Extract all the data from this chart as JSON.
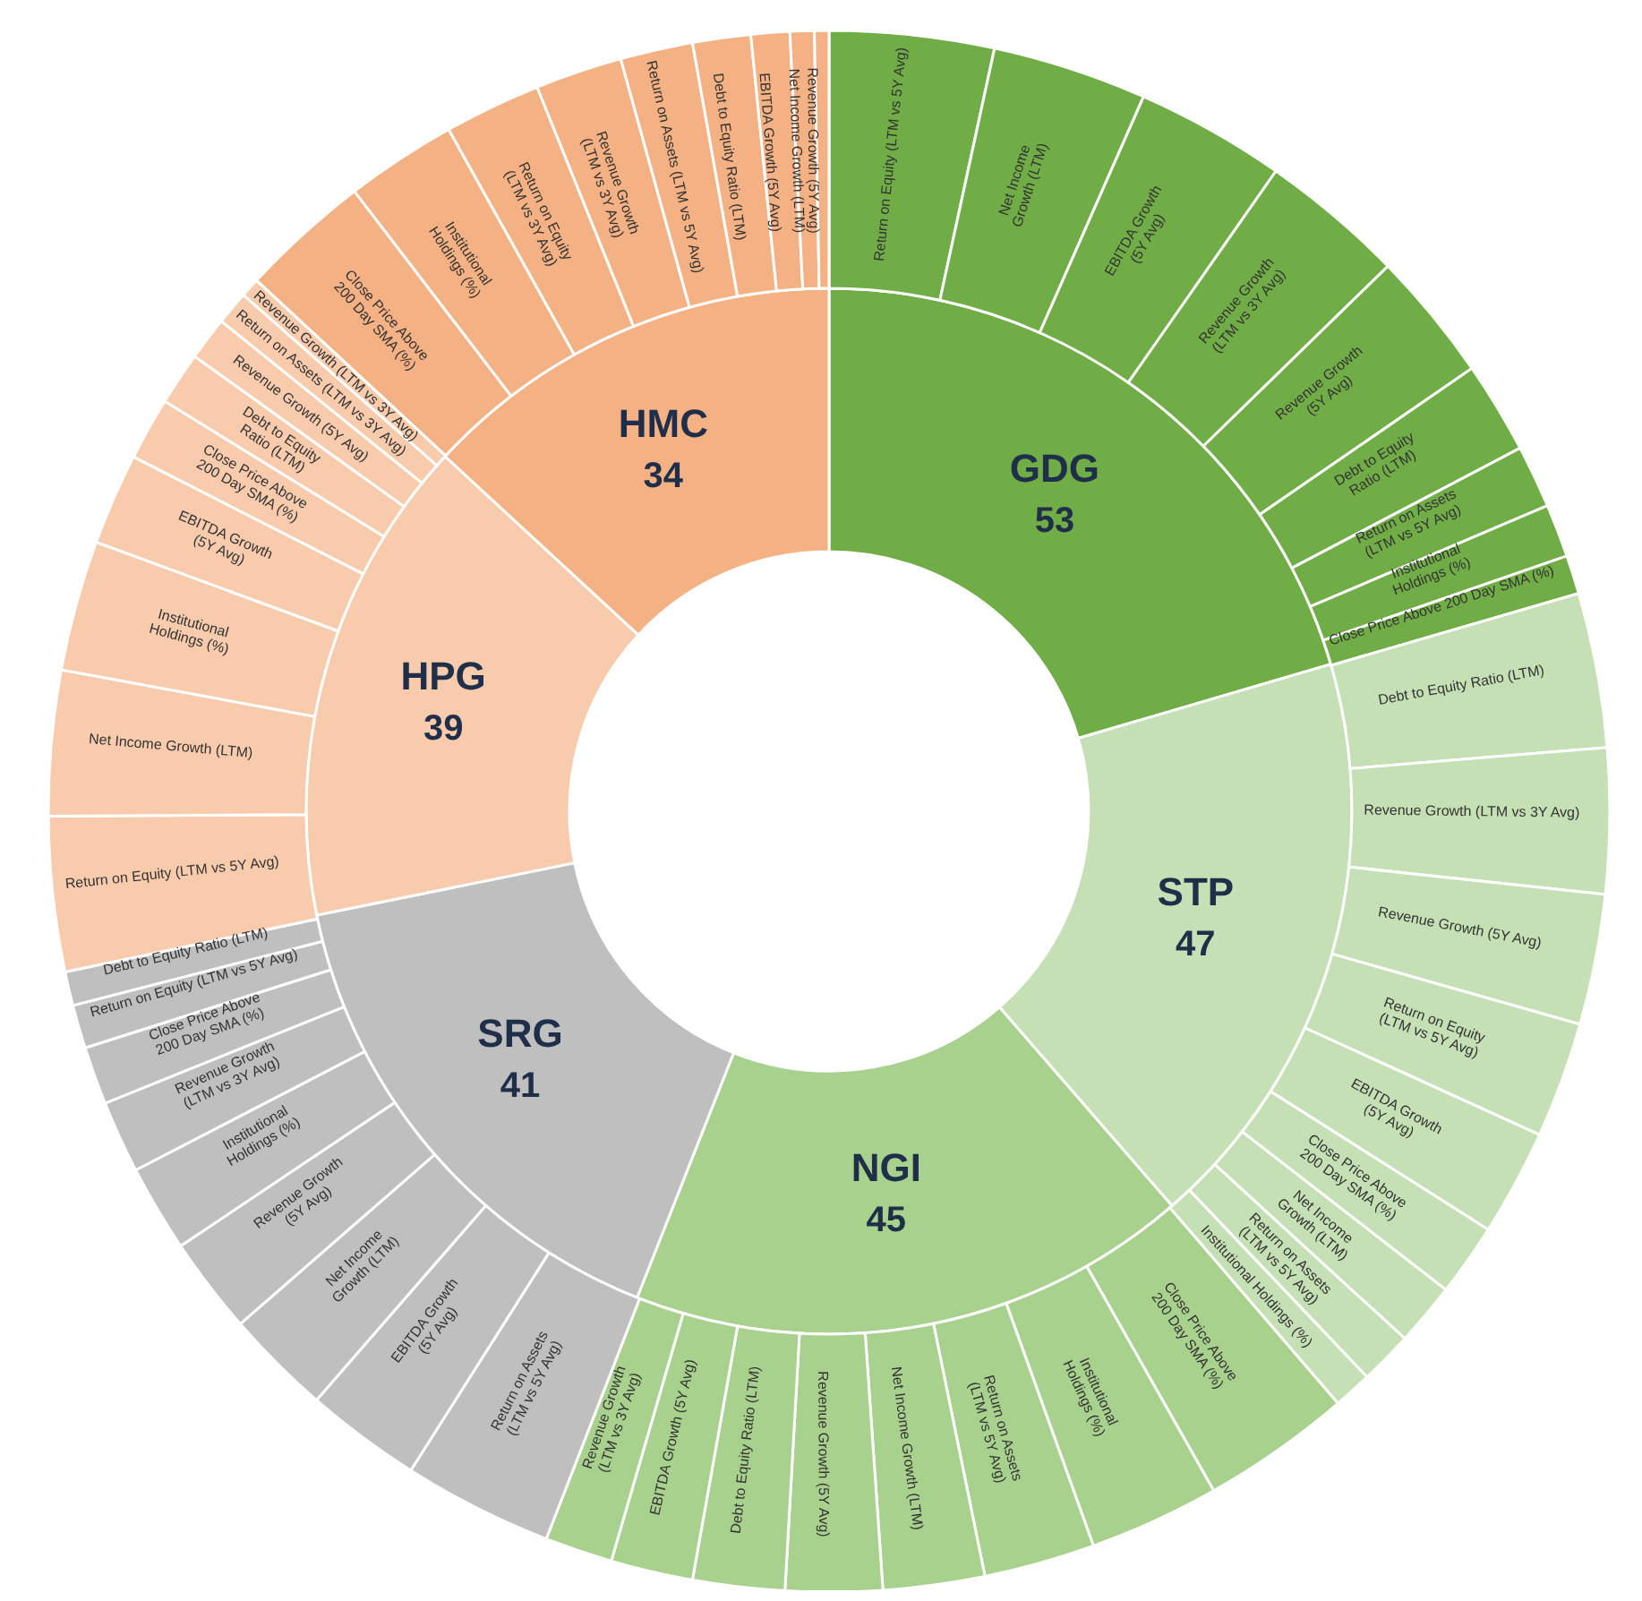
{
  "chart_data": [
    {
      "type": "donut",
      "categories": [
        "GDG",
        "STP",
        "NGI",
        "SRG",
        "HPG",
        "HMC"
      ],
      "values": [
        53,
        47,
        45,
        41,
        39,
        34
      ],
      "colors": [
        "#70ad47",
        "#c5e0b4",
        "#a9d18e",
        "#bfbfbf",
        "#f8cbad",
        "#f4b183"
      ],
      "data_labels": true
    },
    {
      "type": "donut",
      "categories": [
        "Return on Equity (LTM vs 5Y Avg)",
        "Net Income Growth (LTM)",
        "EBITDA Growth (5Y Avg)",
        "Revenue Growth (LTM vs 3Y Avg)",
        "Revenue Growth (5Y Avg)",
        "Debt to Equity Ratio (LTM)",
        "Return on Assets (LTM vs 5Y Avg)",
        "Institutional Holdings (%)",
        "Close Price Above 200 Day SMA (%)",
        "Debt to Equity Ratio (LTM)",
        "Revenue Growth (LTM vs 3Y Avg)",
        "Revenue Growth (5Y Avg)",
        "Return on Equity (LTM vs 5Y Avg)",
        "EBITDA Growth (5Y Avg)",
        "Close Price Above 200 Day SMA (%)",
        "Net Income Growth (LTM)",
        "Return on Assets (LTM vs 5Y Avg)",
        "Institutional Holdings (%)",
        "Close Price Above 200 Day SMA (%)",
        "Institutional Holdings (%)",
        "Return on Assets (LTM vs 5Y Avg)",
        "Net Income Growth (LTM)",
        "Revenue Growth (5Y Avg)",
        "Debt to Equity Ratio (LTM)",
        "EBITDA Growth (5Y Avg)",
        "Revenue Growth (LTM vs 3Y Avg)",
        "Return on Assets (LTM vs 5Y Avg)",
        "EBITDA Growth (5Y Avg)",
        "Net Income Growth (LTM)",
        "Revenue Growth (5Y Avg)",
        "Institutional Holdings (%)",
        "Revenue Growth (LTM vs 3Y Avg)",
        "Close Price Above 200 Day SMA (%)",
        "Return on Equity (LTM vs 5Y Avg)",
        "Debt to Equity Ratio (LTM)",
        "Return on Equity (LTM vs 5Y Avg)",
        "Net Income Growth (LTM)",
        "Institutional Holdings (%)",
        "EBITDA Growth (5Y Avg)",
        "Close Price Above 200 Day SMA (%)",
        "Debt to Equity Ratio (LTM)",
        "Revenue Growth (5Y Avg)",
        "Return on Assets (LTM vs 3Y Avg)",
        "Revenue Growth (LTM vs 3Y Avg)",
        "Close Price Above 200 Day SMA (%)",
        "Institutional Holdings (%)",
        "Return on Equity (LTM vs 3Y Avg)",
        "Revenue Growth (LTM vs 3Y Avg)",
        "Return on Assets (LTM vs 5Y Avg)",
        "Debt to Equity Ratio (LTM)",
        "EBITDA Growth (5Y Avg)",
        "Net Income Growth (LTM)",
        "Revenue Growth (5Y Avg)"
      ],
      "values": [
        3.4,
        3.2,
        3.1,
        3.0,
        2.7,
        1.9,
        1.3,
        1.1,
        0.8,
        3.2,
        3.0,
        2.7,
        2.4,
        2.2,
        1.5,
        1.3,
        1.1,
        0.8,
        3.1,
        2.7,
        2.3,
        2.1,
        2.0,
        1.9,
        1.7,
        1.4,
        3.1,
        2.4,
        2.2,
        2.0,
        1.8,
        1.5,
        1.2,
        0.9,
        0.7,
        3.2,
        3.0,
        2.7,
        1.9,
        1.3,
        1.1,
        0.9,
        0.7,
        0.4,
        2.7,
        2.3,
        2.0,
        1.8,
        1.5,
        1.2,
        0.8,
        0.5,
        0.3
      ],
      "colors": [
        "#70ad47",
        "#70ad47",
        "#70ad47",
        "#70ad47",
        "#70ad47",
        "#70ad47",
        "#70ad47",
        "#70ad47",
        "#70ad47",
        "#c5e0b4",
        "#c5e0b4",
        "#c5e0b4",
        "#c5e0b4",
        "#c5e0b4",
        "#c5e0b4",
        "#c5e0b4",
        "#c5e0b4",
        "#c5e0b4",
        "#a9d18e",
        "#a9d18e",
        "#a9d18e",
        "#a9d18e",
        "#a9d18e",
        "#a9d18e",
        "#a9d18e",
        "#a9d18e",
        "#bfbfbf",
        "#bfbfbf",
        "#bfbfbf",
        "#bfbfbf",
        "#bfbfbf",
        "#bfbfbf",
        "#bfbfbf",
        "#bfbfbf",
        "#bfbfbf",
        "#f8cbad",
        "#f8cbad",
        "#f8cbad",
        "#f8cbad",
        "#f8cbad",
        "#f8cbad",
        "#f8cbad",
        "#f8cbad",
        "#f8cbad",
        "#f4b183",
        "#f4b183",
        "#f4b183",
        "#f4b183",
        "#f4b183",
        "#f4b183",
        "#f4b183",
        "#f4b183",
        "#f4b183"
      ]
    }
  ]
}
